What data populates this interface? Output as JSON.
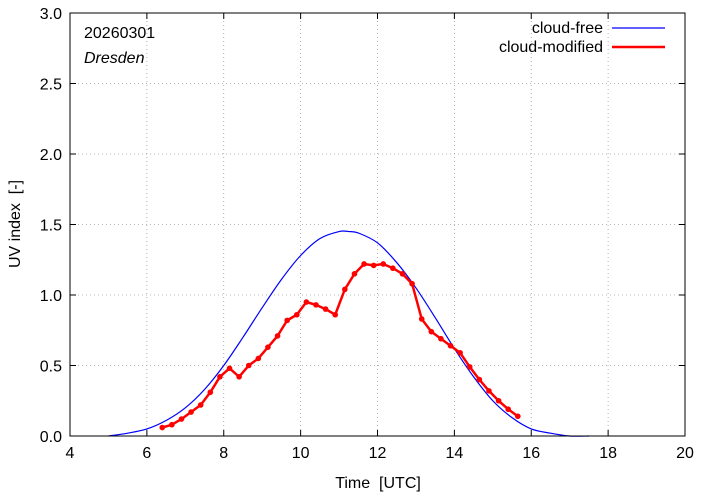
{
  "chart_data": {
    "type": "line",
    "date": "20260301",
    "location": "Dresden",
    "xlabel": "Time  [UTC]",
    "ylabel": "UV index  [-]",
    "xlim": [
      4,
      20
    ],
    "ylim": [
      0.0,
      3.0
    ],
    "x_ticks": [
      4,
      6,
      8,
      10,
      12,
      14,
      16,
      18,
      20
    ],
    "x_tick_labels": [
      "4",
      "6",
      "8",
      "10",
      "12",
      "14",
      "16",
      "18",
      "20"
    ],
    "y_ticks": [
      0.0,
      0.5,
      1.0,
      1.5,
      2.0,
      2.5,
      3.0
    ],
    "y_tick_labels": [
      "0.0",
      "0.5",
      "1.0",
      "1.5",
      "2.0",
      "2.5",
      "3.0"
    ],
    "legend_position": "top-right",
    "series": [
      {
        "name": "cloud-free",
        "color": "#0000ff",
        "markers": false,
        "x": [
          5.0,
          5.5,
          6.0,
          6.5,
          7.0,
          7.5,
          8.0,
          8.5,
          9.0,
          9.5,
          10.0,
          10.5,
          11.0,
          11.25,
          11.5,
          12.0,
          12.5,
          13.0,
          13.5,
          14.0,
          14.5,
          15.0,
          15.5,
          16.0,
          16.5,
          17.0,
          17.5
        ],
        "y": [
          0.0,
          0.02,
          0.05,
          0.11,
          0.2,
          0.33,
          0.5,
          0.7,
          0.91,
          1.11,
          1.28,
          1.4,
          1.45,
          1.45,
          1.44,
          1.37,
          1.23,
          1.05,
          0.84,
          0.62,
          0.42,
          0.25,
          0.13,
          0.05,
          0.02,
          0.0,
          0.0
        ]
      },
      {
        "name": "cloud-modified",
        "color": "#ff0000",
        "markers": true,
        "x": [
          6.4,
          6.65,
          6.9,
          7.15,
          7.4,
          7.65,
          7.9,
          8.15,
          8.4,
          8.65,
          8.9,
          9.15,
          9.4,
          9.65,
          9.9,
          10.15,
          10.4,
          10.65,
          10.9,
          11.15,
          11.4,
          11.65,
          11.9,
          12.15,
          12.4,
          12.65,
          12.9,
          13.15,
          13.4,
          13.65,
          13.9,
          14.15,
          14.4,
          14.65,
          14.9,
          15.15,
          15.4,
          15.65
        ],
        "y": [
          0.06,
          0.08,
          0.12,
          0.17,
          0.22,
          0.31,
          0.42,
          0.48,
          0.42,
          0.5,
          0.55,
          0.63,
          0.71,
          0.82,
          0.86,
          0.95,
          0.93,
          0.9,
          0.86,
          1.04,
          1.15,
          1.22,
          1.21,
          1.22,
          1.19,
          1.15,
          1.08,
          0.83,
          0.74,
          0.69,
          0.64,
          0.59,
          0.49,
          0.4,
          0.32,
          0.25,
          0.19,
          0.14
        ]
      }
    ]
  }
}
